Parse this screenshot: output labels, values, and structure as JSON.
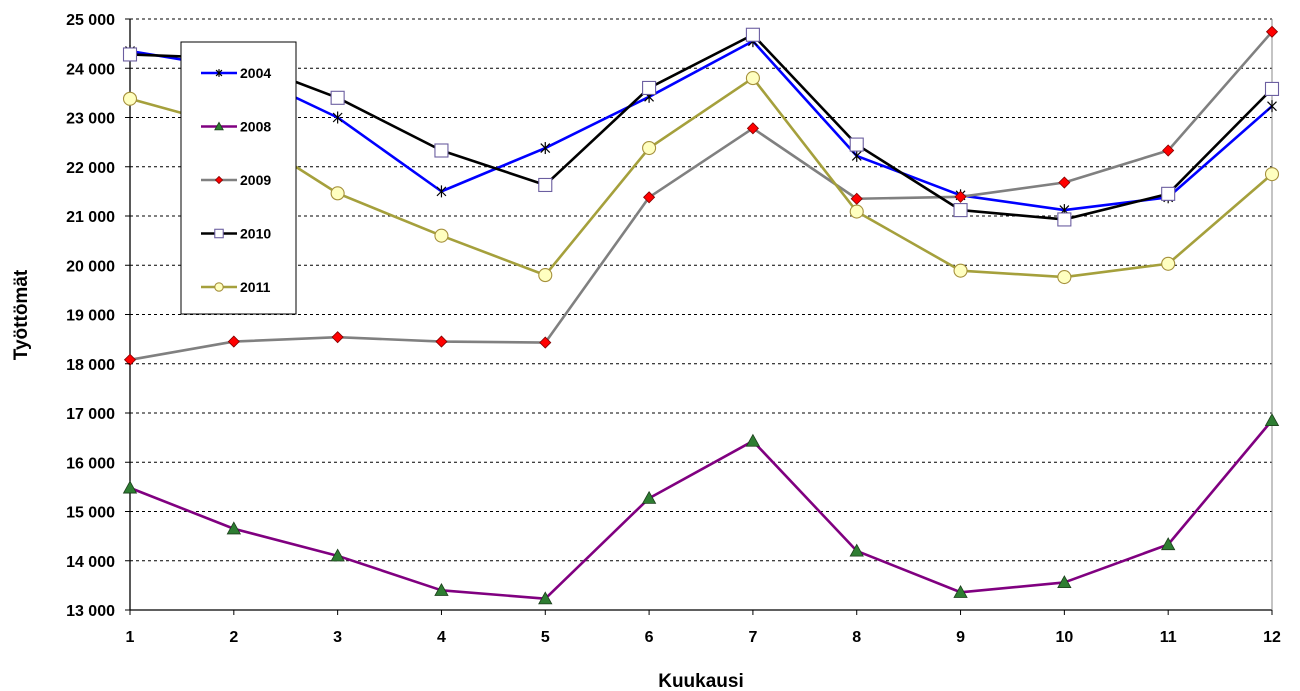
{
  "chart_data": {
    "type": "line",
    "title": "",
    "xlabel": "Kuukausi",
    "ylabel": "Työttömät",
    "x": [
      1,
      2,
      3,
      4,
      5,
      6,
      7,
      8,
      9,
      10,
      11,
      12
    ],
    "ylim": [
      13000,
      25000
    ],
    "yticks": [
      13000,
      14000,
      15000,
      16000,
      17000,
      18000,
      19000,
      20000,
      21000,
      22000,
      23000,
      24000,
      25000
    ],
    "ytick_labels": [
      "13 000",
      "14 000",
      "15 000",
      "16 000",
      "17 000",
      "18 000",
      "19 000",
      "20 000",
      "21 000",
      "22 000",
      "23 000",
      "24 000",
      "25 000"
    ],
    "xtick_labels": [
      "1",
      "2",
      "3",
      "4",
      "5",
      "6",
      "7",
      "8",
      "9",
      "10",
      "11",
      "12"
    ],
    "grid": "horizontal-dashed",
    "legend_position": "top-left",
    "series": [
      {
        "name": "2004",
        "color": "#0000ff",
        "marker": "star",
        "marker_fill": "#000000",
        "values": [
          24350,
          24000,
          23000,
          21500,
          22380,
          23420,
          24550,
          22220,
          21420,
          21120,
          21380,
          23230
        ]
      },
      {
        "name": "2008",
        "color": "#800080",
        "marker": "triangle",
        "marker_fill": "#2e7d32",
        "values": [
          15480,
          14650,
          14100,
          13400,
          13230,
          15270,
          16430,
          14200,
          13360,
          13560,
          14330,
          16850
        ]
      },
      {
        "name": "2009",
        "color": "#808080",
        "marker": "diamond",
        "marker_fill": "#ff0000",
        "values": [
          18080,
          18450,
          18540,
          18450,
          18430,
          21380,
          22780,
          21350,
          21390,
          21680,
          22330,
          24740
        ]
      },
      {
        "name": "2010",
        "color": "#000000",
        "marker": "square",
        "marker_fill": "#ffffff",
        "values": [
          24280,
          24200,
          23400,
          22330,
          21630,
          23600,
          24680,
          22450,
          21120,
          20930,
          21450,
          23580
        ]
      },
      {
        "name": "2011",
        "color": "#a5a03c",
        "marker": "circle",
        "marker_fill": "#ffffc0",
        "values": [
          23380,
          22800,
          21460,
          20600,
          19800,
          22380,
          23800,
          21090,
          19890,
          19760,
          20030,
          21850
        ]
      }
    ]
  }
}
